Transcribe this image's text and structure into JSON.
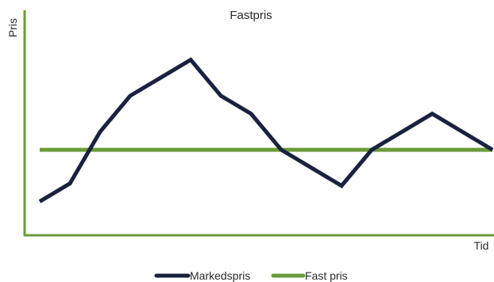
{
  "chart_data": {
    "type": "line",
    "title": "Fastpris",
    "xlabel": "Tid",
    "ylabel": "Pris",
    "x": [
      1,
      2,
      3,
      4,
      5,
      6,
      7,
      8,
      9,
      10,
      11,
      12,
      13,
      14,
      15,
      16
    ],
    "xlim": [
      0.5,
      16.1
    ],
    "ylim": [
      0,
      10
    ],
    "grid": false,
    "legend_position": "bottom",
    "series": [
      {
        "name": "Markedspris",
        "color": "#1b2140",
        "values": [
          1.5,
          2.3,
          4.6,
          6.2,
          7.0,
          7.8,
          6.2,
          5.4,
          3.8,
          3.0,
          2.2,
          3.8,
          4.6,
          5.4,
          4.6,
          3.8
        ]
      },
      {
        "name": "Fast pris",
        "color": "#6a9c3a",
        "values": [
          3.8,
          3.8,
          3.8,
          3.8,
          3.8,
          3.8,
          3.8,
          3.8,
          3.8,
          3.8,
          3.8,
          3.8,
          3.8,
          3.8,
          3.8,
          3.8
        ]
      }
    ],
    "axis_color": "#6a9c3a"
  }
}
